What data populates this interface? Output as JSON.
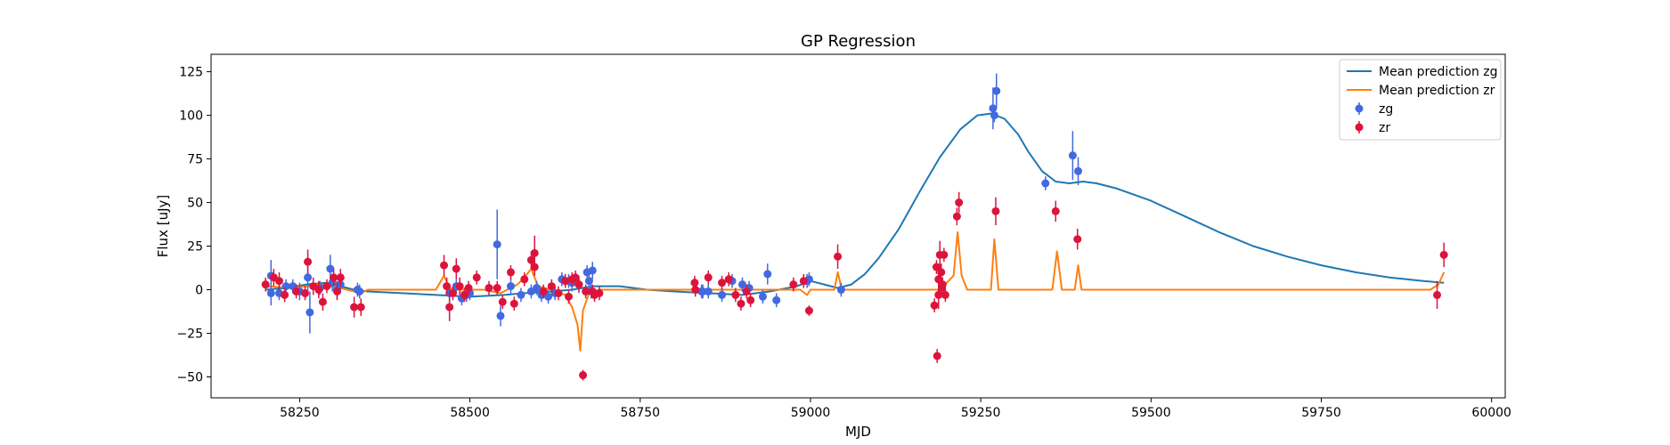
{
  "chart_data": {
    "type": "scatter",
    "title": "GP Regression",
    "xlabel": "MJD",
    "ylabel": "Flux [uJy]",
    "xlim": [
      58120,
      60020
    ],
    "ylim": [
      -62,
      135
    ],
    "x_ticks": [
      58250,
      58500,
      58750,
      59000,
      59250,
      59500,
      59750,
      60000
    ],
    "y_ticks": [
      -50,
      -25,
      0,
      25,
      50,
      75,
      100,
      125
    ],
    "grid": false,
    "legend_position": "upper right",
    "lines": [
      {
        "name": "Mean prediction zg",
        "color": "#1f77b4",
        "points": [
          [
            58200,
            0
          ],
          [
            58230,
            1
          ],
          [
            58260,
            3
          ],
          [
            58290,
            4
          ],
          [
            58310,
            2
          ],
          [
            58330,
            0
          ],
          [
            58350,
            -1
          ],
          [
            58400,
            -2
          ],
          [
            58450,
            -3
          ],
          [
            58500,
            -4
          ],
          [
            58550,
            -3
          ],
          [
            58580,
            -2
          ],
          [
            58620,
            -1
          ],
          [
            58650,
            0
          ],
          [
            58680,
            2
          ],
          [
            58720,
            2
          ],
          [
            58760,
            0
          ],
          [
            58800,
            -1
          ],
          [
            58850,
            -2
          ],
          [
            58900,
            -3
          ],
          [
            58940,
            -1
          ],
          [
            58980,
            2
          ],
          [
            59000,
            5
          ],
          [
            59020,
            3
          ],
          [
            59040,
            1
          ],
          [
            59060,
            3
          ],
          [
            59080,
            9
          ],
          [
            59100,
            18
          ],
          [
            59130,
            35
          ],
          [
            59160,
            56
          ],
          [
            59190,
            76
          ],
          [
            59220,
            92
          ],
          [
            59245,
            100
          ],
          [
            59265,
            101
          ],
          [
            59285,
            98
          ],
          [
            59305,
            89
          ],
          [
            59320,
            79
          ],
          [
            59340,
            68
          ],
          [
            59360,
            62
          ],
          [
            59380,
            61
          ],
          [
            59400,
            62
          ],
          [
            59420,
            61
          ],
          [
            59450,
            58
          ],
          [
            59500,
            51
          ],
          [
            59550,
            42
          ],
          [
            59600,
            33
          ],
          [
            59650,
            25
          ],
          [
            59700,
            19
          ],
          [
            59750,
            14
          ],
          [
            59800,
            10
          ],
          [
            59850,
            7
          ],
          [
            59900,
            5
          ],
          [
            59930,
            4
          ]
        ]
      },
      {
        "name": "Mean prediction zr",
        "color": "#ff7f0e",
        "points": [
          [
            58200,
            2
          ],
          [
            58240,
            1
          ],
          [
            58280,
            3
          ],
          [
            58310,
            1
          ],
          [
            58340,
            -2
          ],
          [
            58350,
            0
          ],
          [
            58400,
            0
          ],
          [
            58450,
            0
          ],
          [
            58462,
            8
          ],
          [
            58470,
            1
          ],
          [
            58480,
            0
          ],
          [
            58520,
            0
          ],
          [
            58545,
            -2
          ],
          [
            58570,
            3
          ],
          [
            58580,
            7
          ],
          [
            58590,
            12
          ],
          [
            58600,
            2
          ],
          [
            58620,
            0
          ],
          [
            58640,
            -3
          ],
          [
            58650,
            -10
          ],
          [
            58658,
            -20
          ],
          [
            58662,
            -35
          ],
          [
            58666,
            -12
          ],
          [
            58675,
            -2
          ],
          [
            58690,
            0
          ],
          [
            58750,
            0
          ],
          [
            58900,
            0
          ],
          [
            58985,
            0
          ],
          [
            58995,
            -3
          ],
          [
            59000,
            0
          ],
          [
            59035,
            0
          ],
          [
            59040,
            10
          ],
          [
            59046,
            0
          ],
          [
            59190,
            0
          ],
          [
            59210,
            8
          ],
          [
            59216,
            33
          ],
          [
            59222,
            8
          ],
          [
            59230,
            0
          ],
          [
            59265,
            0
          ],
          [
            59270,
            29
          ],
          [
            59276,
            0
          ],
          [
            59355,
            0
          ],
          [
            59362,
            22
          ],
          [
            59369,
            0
          ],
          [
            59388,
            0
          ],
          [
            59393,
            14
          ],
          [
            59398,
            0
          ],
          [
            59910,
            0
          ],
          [
            59922,
            3
          ],
          [
            59930,
            10
          ]
        ]
      }
    ],
    "series": [
      {
        "name": "zg",
        "color": "#4169e1",
        "points": [
          [
            58208,
            -2,
            7
          ],
          [
            58208,
            8,
            9
          ],
          [
            58220,
            -2,
            4
          ],
          [
            58230,
            2,
            4
          ],
          [
            58240,
            2,
            4
          ],
          [
            58250,
            -1,
            5
          ],
          [
            58262,
            7,
            8
          ],
          [
            58265,
            -13,
            12
          ],
          [
            58280,
            1,
            4
          ],
          [
            58295,
            12,
            8
          ],
          [
            58298,
            4,
            5
          ],
          [
            58305,
            0,
            5
          ],
          [
            58310,
            3,
            5
          ],
          [
            58335,
            0,
            4
          ],
          [
            58338,
            -1,
            4
          ],
          [
            58470,
            -2,
            5
          ],
          [
            58480,
            2,
            4
          ],
          [
            58488,
            -5,
            4
          ],
          [
            58495,
            -3,
            4
          ],
          [
            58500,
            -2,
            4
          ],
          [
            58540,
            26,
            20
          ],
          [
            58545,
            -15,
            6
          ],
          [
            58560,
            2,
            5
          ],
          [
            58575,
            -3,
            4
          ],
          [
            58590,
            -1,
            4
          ],
          [
            58598,
            1,
            4
          ],
          [
            58605,
            -3,
            4
          ],
          [
            58615,
            -4,
            4
          ],
          [
            58625,
            -2,
            4
          ],
          [
            58635,
            6,
            4
          ],
          [
            58645,
            5,
            4
          ],
          [
            58650,
            4,
            5
          ],
          [
            58660,
            3,
            5
          ],
          [
            58672,
            10,
            4
          ],
          [
            58675,
            5,
            5
          ],
          [
            58678,
            -1,
            4
          ],
          [
            58680,
            11,
            5
          ],
          [
            58840,
            -1,
            4
          ],
          [
            58842,
            -1,
            4
          ],
          [
            58850,
            -1,
            4
          ],
          [
            58870,
            -3,
            4
          ],
          [
            58885,
            5,
            4
          ],
          [
            58900,
            3,
            4
          ],
          [
            58910,
            1,
            4
          ],
          [
            58930,
            -4,
            4
          ],
          [
            58937,
            9,
            6
          ],
          [
            58950,
            -6,
            4
          ],
          [
            58995,
            5,
            4
          ],
          [
            58998,
            6,
            4
          ],
          [
            59045,
            0,
            4
          ],
          [
            59268,
            104,
            12
          ],
          [
            59270,
            100,
            4
          ],
          [
            59273,
            114,
            10
          ],
          [
            59345,
            61,
            4
          ],
          [
            59385,
            77,
            14
          ],
          [
            59393,
            68,
            8
          ]
        ]
      },
      {
        "name": "zr",
        "color": "#dc143c",
        "points": [
          [
            58200,
            3,
            4
          ],
          [
            58212,
            7,
            5
          ],
          [
            58220,
            5,
            5
          ],
          [
            58228,
            -3,
            4
          ],
          [
            58245,
            -1,
            4
          ],
          [
            58258,
            -2,
            4
          ],
          [
            58262,
            16,
            7
          ],
          [
            58270,
            2,
            5
          ],
          [
            58278,
            0,
            5
          ],
          [
            58284,
            -7,
            5
          ],
          [
            58290,
            2,
            4
          ],
          [
            58300,
            7,
            5
          ],
          [
            58305,
            -1,
            5
          ],
          [
            58310,
            7,
            5
          ],
          [
            58330,
            -10,
            6
          ],
          [
            58340,
            -10,
            5
          ],
          [
            58462,
            14,
            6
          ],
          [
            58466,
            2,
            5
          ],
          [
            58470,
            -10,
            8
          ],
          [
            58475,
            -2,
            4
          ],
          [
            58480,
            12,
            6
          ],
          [
            58485,
            2,
            5
          ],
          [
            58492,
            -3,
            4
          ],
          [
            58498,
            1,
            4
          ],
          [
            58510,
            7,
            4
          ],
          [
            58528,
            1,
            4
          ],
          [
            58540,
            1,
            4
          ],
          [
            58548,
            -7,
            4
          ],
          [
            58560,
            10,
            4
          ],
          [
            58565,
            -8,
            4
          ],
          [
            58580,
            6,
            4
          ],
          [
            58590,
            17,
            5
          ],
          [
            58595,
            13,
            5
          ],
          [
            58595,
            21,
            10
          ],
          [
            58608,
            -1,
            4
          ],
          [
            58620,
            2,
            4
          ],
          [
            58630,
            -2,
            4
          ],
          [
            58640,
            5,
            4
          ],
          [
            58645,
            -4,
            4
          ],
          [
            58650,
            6,
            4
          ],
          [
            58655,
            7,
            4
          ],
          [
            58660,
            3,
            4
          ],
          [
            58666,
            -49,
            3
          ],
          [
            58670,
            -1,
            4
          ],
          [
            58680,
            -1,
            4
          ],
          [
            58683,
            -3,
            4
          ],
          [
            58690,
            -2,
            4
          ],
          [
            58830,
            4,
            4
          ],
          [
            58831,
            0,
            4
          ],
          [
            58850,
            7,
            4
          ],
          [
            58870,
            4,
            4
          ],
          [
            58880,
            6,
            4
          ],
          [
            58890,
            -3,
            4
          ],
          [
            58898,
            -8,
            4
          ],
          [
            58906,
            -1,
            4
          ],
          [
            58912,
            -6,
            4
          ],
          [
            58975,
            3,
            4
          ],
          [
            58990,
            5,
            4
          ],
          [
            58998,
            -12,
            3
          ],
          [
            59040,
            19,
            7
          ],
          [
            59182,
            -9,
            4
          ],
          [
            59185,
            13,
            4
          ],
          [
            59188,
            6,
            5
          ],
          [
            59190,
            20,
            8
          ],
          [
            59188,
            -3,
            8
          ],
          [
            59192,
            10,
            5
          ],
          [
            59186,
            -38,
            4
          ],
          [
            59193,
            1,
            4
          ],
          [
            59194,
            3,
            4
          ],
          [
            59196,
            20,
            4
          ],
          [
            59198,
            -3,
            4
          ],
          [
            59215,
            42,
            5
          ],
          [
            59218,
            50,
            6
          ],
          [
            59272,
            45,
            8
          ],
          [
            59360,
            45,
            6
          ],
          [
            59392,
            29,
            6
          ],
          [
            59920,
            -3,
            8
          ],
          [
            59930,
            20,
            7
          ]
        ]
      }
    ]
  }
}
